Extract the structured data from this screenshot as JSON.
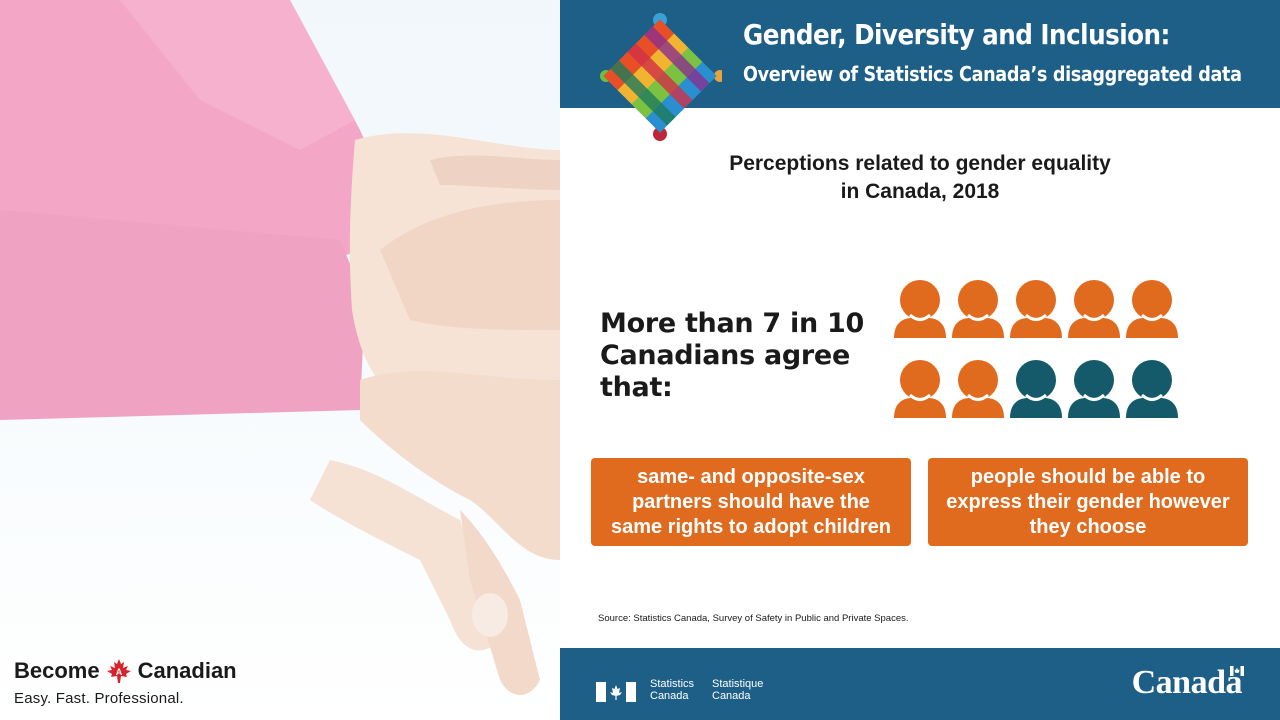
{
  "left_panel": {
    "brand_word1": "Become",
    "brand_word2": "Canadian",
    "brand_leaf_letter": "A",
    "tagline": "Easy. Fast. Professional."
  },
  "header": {
    "title": "Gender, Diversity and Inclusion:",
    "subtitle": "Overview of Statistics Canada’s disaggregated data"
  },
  "chart_title_line1": "Perceptions related to gender equality",
  "chart_title_line2": "in Canada, 2018",
  "headline": {
    "prefix": "More than ",
    "highlight": "7 in 10",
    "line2": "Canadians agree",
    "line3": "that:"
  },
  "pictograph": {
    "total": 10,
    "highlighted": 7,
    "highlight_color": "#e06a1e",
    "rest_color": "#145a6b"
  },
  "statements": [
    "same- and opposite-sex partners should have the same rights to adopt children",
    "people should be able to express their gender however they choose"
  ],
  "source": "Source: Statistics Canada, Survey of Safety in Public and Private Spaces.",
  "footer": {
    "org_en_1": "Statistics",
    "org_en_2": "Canada",
    "org_fr_1": "Statistique",
    "org_fr_2": "Canada",
    "wordmark": "Canada"
  },
  "colors": {
    "banner": "#1e5f87",
    "orange": "#e06a1e",
    "teal": "#145a6b",
    "text": "#1a1a1a"
  }
}
